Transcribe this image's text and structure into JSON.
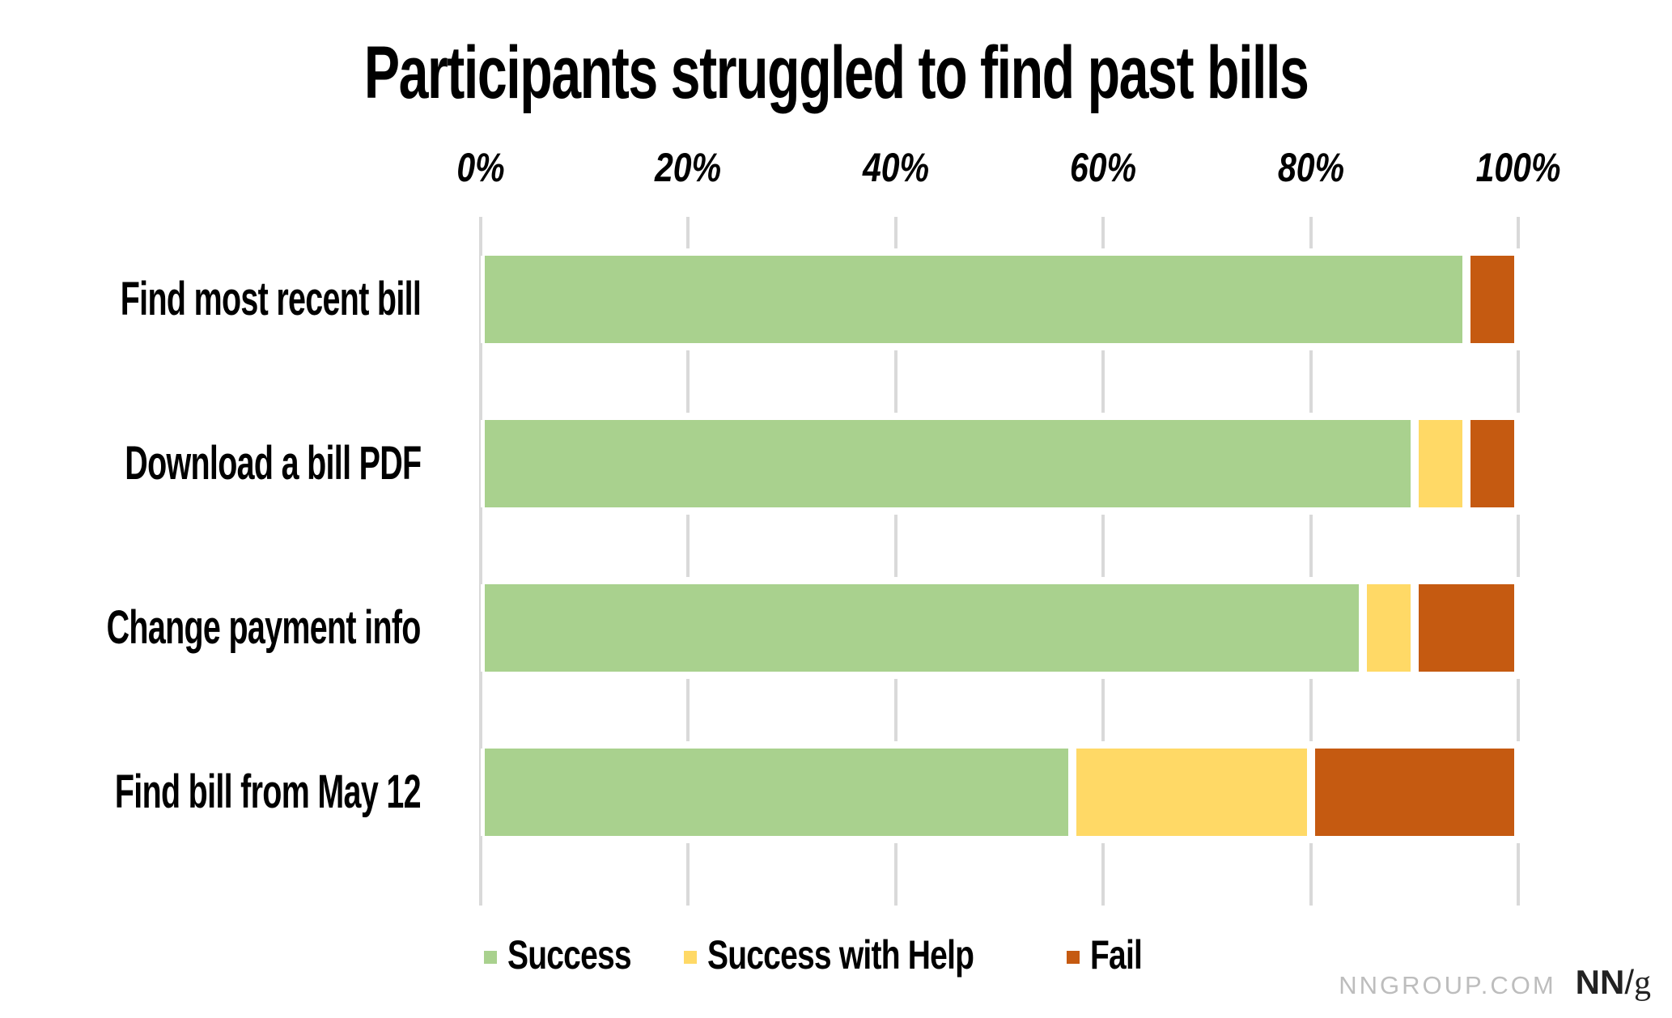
{
  "title": "Participants struggled to find past bills",
  "chart_data": {
    "type": "bar",
    "orientation": "horizontal-stacked",
    "title": "Participants struggled to find past bills",
    "categories": [
      "Find most recent bill",
      "Download a bill PDF",
      "Change payment info",
      "Find bill from May 12"
    ],
    "series": [
      {
        "name": "Success",
        "color": "#A9D18E",
        "values": [
          95,
          90,
          85,
          57
        ]
      },
      {
        "name": "Success with Help",
        "color": "#FFD966",
        "values": [
          0,
          5,
          5,
          23
        ]
      },
      {
        "name": "Fail",
        "color": "#C55A11",
        "values": [
          5,
          5,
          10,
          20
        ]
      }
    ],
    "x_ticks": [
      "0%",
      "20%",
      "40%",
      "60%",
      "80%",
      "100%"
    ],
    "xlim": [
      0,
      100
    ],
    "xlabel": "",
    "ylabel": "",
    "grid": "vertical tick segments between bars, light gray",
    "legend_position": "bottom",
    "grid_color": "#D9D9D9"
  },
  "footer": {
    "site": "NNGROUP.COM",
    "logo_nn": "NN",
    "logo_slash": "/",
    "logo_g": "g"
  }
}
